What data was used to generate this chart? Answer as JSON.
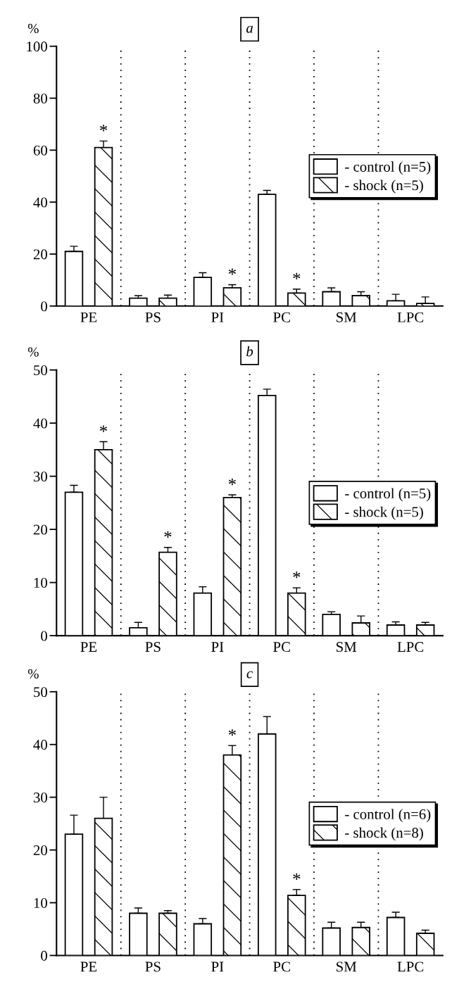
{
  "chart_data": [
    {
      "type": "bar",
      "title": "a",
      "ylabel": "%",
      "categories": [
        "PE",
        "PS",
        "PI",
        "PC",
        "SM",
        "LPC"
      ],
      "ylim": [
        0,
        100
      ],
      "yticks": [
        0,
        20,
        40,
        60,
        80,
        100
      ],
      "grid": "x",
      "legend": "right",
      "series": [
        {
          "name": "- control (n=5)",
          "color": "#ffffff",
          "values": [
            21,
            3,
            11,
            43,
            5.5,
            2
          ],
          "errors": [
            [
              21,
              23
            ],
            [
              3,
              4
            ],
            [
              11,
              12.8
            ],
            [
              43,
              44.5
            ],
            [
              5.5,
              7
            ],
            [
              2,
              4.5
            ]
          ]
        },
        {
          "name": "- shock (n=5)",
          "color": "#000000",
          "values": [
            61,
            3,
            7,
            5,
            4,
            1
          ],
          "errors": [
            [
              61,
              63.5
            ],
            [
              3,
              4.2
            ],
            [
              7,
              8.2
            ],
            [
              5,
              6.5
            ],
            [
              4,
              5.5
            ],
            [
              1,
              3.5
            ]
          ],
          "value_labels": [
            "*",
            null,
            "*",
            "*",
            null,
            null
          ]
        }
      ]
    },
    {
      "type": "bar",
      "title": "b",
      "ylabel": "%",
      "categories": [
        "PE",
        "PS",
        "PI",
        "PC",
        "SM",
        "LPC"
      ],
      "ylim": [
        0,
        50
      ],
      "yticks": [
        0,
        10,
        20,
        30,
        40,
        50
      ],
      "grid": "x",
      "legend": "right",
      "series": [
        {
          "name": "- control (n=5)",
          "color": "#ffffff",
          "values": [
            27,
            1.5,
            8,
            45.2,
            4,
            2
          ],
          "errors": [
            [
              27,
              28.3
            ],
            [
              1.5,
              2.5
            ],
            [
              8,
              9.2
            ],
            [
              45.2,
              46.4
            ],
            [
              4,
              4.5
            ],
            [
              2,
              2.6
            ]
          ]
        },
        {
          "name": "- shock (n=5)",
          "color": "#000000",
          "values": [
            35,
            15.7,
            26,
            8,
            2.4,
            2
          ],
          "errors": [
            [
              35,
              36.5
            ],
            [
              15.7,
              16.6
            ],
            [
              26,
              26.5
            ],
            [
              8,
              9
            ],
            [
              2.4,
              3.7
            ],
            [
              2,
              2.5
            ]
          ],
          "value_labels": [
            "*",
            "*",
            "*",
            "*",
            null,
            null
          ]
        }
      ]
    },
    {
      "type": "bar",
      "title": "c",
      "ylabel": "%",
      "categories": [
        "PE",
        "PS",
        "PI",
        "PC",
        "SM",
        "LPC"
      ],
      "ylim": [
        0,
        50
      ],
      "yticks": [
        0,
        10,
        20,
        30,
        40,
        50
      ],
      "grid": "x",
      "legend": "right",
      "series": [
        {
          "name": "- control (n=6)",
          "color": "#ffffff",
          "values": [
            23,
            8,
            6,
            42,
            5.2,
            7.2
          ],
          "errors": [
            [
              23,
              26.6
            ],
            [
              8,
              9
            ],
            [
              6,
              7
            ],
            [
              42,
              45.3
            ],
            [
              5.2,
              6.3
            ],
            [
              7.2,
              8.2
            ]
          ]
        },
        {
          "name": "- shock (n=8)",
          "color": "#000000",
          "values": [
            26,
            8,
            38,
            11.4,
            5.3,
            4.2
          ],
          "errors": [
            [
              26,
              30
            ],
            [
              8,
              8.5
            ],
            [
              38,
              39.8
            ],
            [
              11.4,
              12.5
            ],
            [
              5.3,
              6.3
            ],
            [
              4.2,
              4.8
            ]
          ],
          "value_labels": [
            null,
            null,
            "*",
            "*",
            null,
            null
          ]
        }
      ]
    }
  ]
}
